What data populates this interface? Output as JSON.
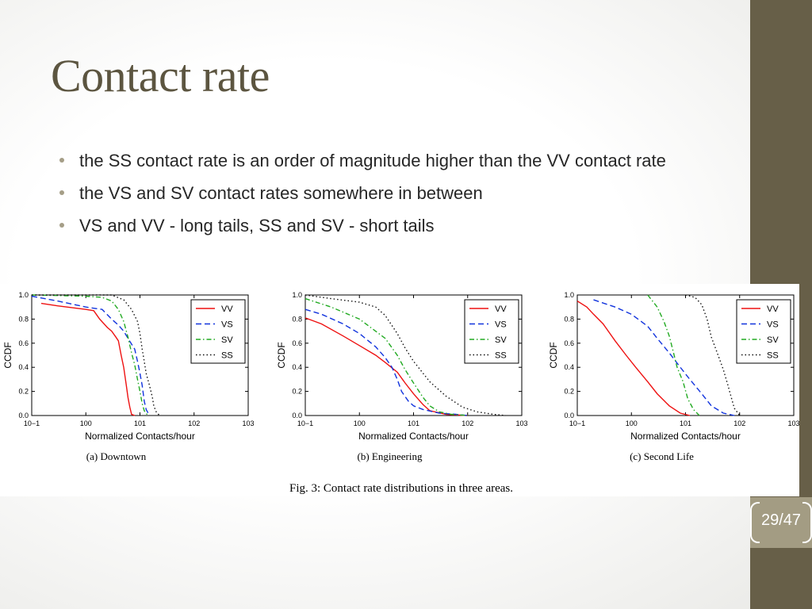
{
  "slide": {
    "title": "Contact rate",
    "bullets": [
      "the SS contact rate is an order of magnitude higher than the VV contact rate",
      "the VS and SV contact rates somewhere in between",
      "VS and VV - long tails, SS and SV - short tails"
    ],
    "page_counter": "29/47",
    "colors": {
      "sidebar": "#675f48",
      "title": "#5c5540",
      "bullet": "#a59e87",
      "counter_bg": "#a39c83"
    }
  },
  "figure": {
    "caption": "Fig. 3: Contact rate distributions in three areas."
  },
  "chart_data": [
    {
      "type": "line",
      "title": "(a) Downtown",
      "xlabel": "Normalized Contacts/hour",
      "ylabel": "CCDF",
      "x_scale": "log",
      "xlim": [
        0.1,
        1000
      ],
      "ylim": [
        0,
        1.0
      ],
      "x_ticks": [
        "10−1",
        "100",
        "101",
        "102",
        "103"
      ],
      "y_ticks": [
        "0.0",
        "0.2",
        "0.4",
        "0.6",
        "0.8",
        "1.0"
      ],
      "legend_position": "top-right",
      "series": [
        {
          "name": "VV",
          "color": "#ee1111",
          "dash": "solid",
          "points": [
            [
              0.15,
              0.93
            ],
            [
              0.3,
              0.91
            ],
            [
              1,
              0.88
            ],
            [
              1.4,
              0.87
            ],
            [
              1.8,
              0.8
            ],
            [
              2.5,
              0.73
            ],
            [
              3,
              0.7
            ],
            [
              3.6,
              0.65
            ],
            [
              4,
              0.62
            ],
            [
              4.5,
              0.5
            ],
            [
              5,
              0.4
            ],
            [
              5.6,
              0.25
            ],
            [
              6,
              0.15
            ],
            [
              6.5,
              0.07
            ],
            [
              7,
              0.01
            ],
            [
              8,
              0
            ]
          ]
        },
        {
          "name": "VS",
          "color": "#1133dd",
          "dash": "dashed",
          "points": [
            [
              0.1,
              0.99
            ],
            [
              0.3,
              0.95
            ],
            [
              1,
              0.9
            ],
            [
              2,
              0.88
            ],
            [
              3,
              0.8
            ],
            [
              4,
              0.75
            ],
            [
              5,
              0.7
            ],
            [
              6,
              0.64
            ],
            [
              8,
              0.55
            ],
            [
              9,
              0.45
            ],
            [
              10,
              0.35
            ],
            [
              11,
              0.25
            ],
            [
              12,
              0.12
            ],
            [
              13,
              0.05
            ],
            [
              15,
              0
            ]
          ]
        },
        {
          "name": "SV",
          "color": "#22aa22",
          "dash": "dashdot",
          "points": [
            [
              0.1,
              1
            ],
            [
              1,
              0.99
            ],
            [
              2,
              0.98
            ],
            [
              3,
              0.95
            ],
            [
              4,
              0.88
            ],
            [
              5,
              0.78
            ],
            [
              6,
              0.65
            ],
            [
              7,
              0.52
            ],
            [
              8,
              0.42
            ],
            [
              9,
              0.3
            ],
            [
              10,
              0.2
            ],
            [
              11,
              0.1
            ],
            [
              12,
              0.04
            ],
            [
              14,
              0
            ]
          ]
        },
        {
          "name": "SS",
          "color": "#111111",
          "dash": "dotted",
          "points": [
            [
              0.1,
              1
            ],
            [
              3,
              1
            ],
            [
              5,
              0.96
            ],
            [
              7,
              0.88
            ],
            [
              9,
              0.78
            ],
            [
              10,
              0.68
            ],
            [
              11,
              0.55
            ],
            [
              12,
              0.45
            ],
            [
              13,
              0.35
            ],
            [
              15,
              0.25
            ],
            [
              17,
              0.15
            ],
            [
              18,
              0.08
            ],
            [
              20,
              0.03
            ],
            [
              23,
              0
            ]
          ]
        }
      ]
    },
    {
      "type": "line",
      "title": "(b) Engineering",
      "xlabel": "Normalized Contacts/hour",
      "ylabel": "CCDF",
      "x_scale": "log",
      "xlim": [
        0.1,
        1000
      ],
      "ylim": [
        0,
        1.0
      ],
      "x_ticks": [
        "10−1",
        "100",
        "101",
        "102",
        "103"
      ],
      "y_ticks": [
        "0.0",
        "0.2",
        "0.4",
        "0.6",
        "0.8",
        "1.0"
      ],
      "legend_position": "top-right",
      "series": [
        {
          "name": "VV",
          "color": "#ee1111",
          "dash": "solid",
          "points": [
            [
              0.1,
              0.81
            ],
            [
              0.2,
              0.76
            ],
            [
              0.5,
              0.66
            ],
            [
              1,
              0.58
            ],
            [
              2,
              0.5
            ],
            [
              3,
              0.44
            ],
            [
              5,
              0.36
            ],
            [
              7,
              0.27
            ],
            [
              10,
              0.18
            ],
            [
              15,
              0.09
            ],
            [
              20,
              0.04
            ],
            [
              40,
              0.01
            ],
            [
              100,
              0
            ]
          ]
        },
        {
          "name": "VS",
          "color": "#1133dd",
          "dash": "dashed",
          "points": [
            [
              0.1,
              0.88
            ],
            [
              0.2,
              0.84
            ],
            [
              0.5,
              0.76
            ],
            [
              1,
              0.68
            ],
            [
              2,
              0.57
            ],
            [
              3,
              0.48
            ],
            [
              4,
              0.4
            ],
            [
              5,
              0.3
            ],
            [
              6,
              0.2
            ],
            [
              8,
              0.12
            ],
            [
              10,
              0.08
            ],
            [
              15,
              0.05
            ],
            [
              30,
              0.02
            ],
            [
              60,
              0.01
            ],
            [
              100,
              0
            ]
          ]
        },
        {
          "name": "SV",
          "color": "#22aa22",
          "dash": "dashdot",
          "points": [
            [
              0.1,
              0.97
            ],
            [
              0.3,
              0.9
            ],
            [
              1,
              0.8
            ],
            [
              3,
              0.64
            ],
            [
              5,
              0.5
            ],
            [
              7,
              0.38
            ],
            [
              10,
              0.27
            ],
            [
              15,
              0.15
            ],
            [
              20,
              0.08
            ],
            [
              30,
              0.03
            ],
            [
              50,
              0.01
            ],
            [
              100,
              0
            ]
          ]
        },
        {
          "name": "SS",
          "color": "#111111",
          "dash": "dotted",
          "points": [
            [
              0.1,
              1
            ],
            [
              0.3,
              0.97
            ],
            [
              1,
              0.94
            ],
            [
              2,
              0.9
            ],
            [
              3,
              0.83
            ],
            [
              5,
              0.68
            ],
            [
              7,
              0.56
            ],
            [
              10,
              0.45
            ],
            [
              20,
              0.28
            ],
            [
              40,
              0.16
            ],
            [
              80,
              0.07
            ],
            [
              150,
              0.03
            ],
            [
              300,
              0.01
            ],
            [
              500,
              0
            ]
          ]
        }
      ]
    },
    {
      "type": "line",
      "title": "(c) Second Life",
      "xlabel": "Normalized Contacts/hour",
      "ylabel": "CCDF",
      "x_scale": "log",
      "xlim": [
        0.1,
        1000
      ],
      "ylim": [
        0,
        1.0
      ],
      "x_ticks": [
        "10−1",
        "100",
        "101",
        "102",
        "103"
      ],
      "y_ticks": [
        "0.0",
        "0.2",
        "0.4",
        "0.6",
        "0.8",
        "1.0"
      ],
      "legend_position": "top-right",
      "series": [
        {
          "name": "VV",
          "color": "#ee1111",
          "dash": "solid",
          "points": [
            [
              0.1,
              0.95
            ],
            [
              0.15,
              0.9
            ],
            [
              0.2,
              0.84
            ],
            [
              0.3,
              0.76
            ],
            [
              0.5,
              0.62
            ],
            [
              0.8,
              0.5
            ],
            [
              1.2,
              0.4
            ],
            [
              2,
              0.28
            ],
            [
              3,
              0.18
            ],
            [
              5,
              0.08
            ],
            [
              8,
              0.02
            ],
            [
              12,
              0
            ]
          ]
        },
        {
          "name": "VS",
          "color": "#1133dd",
          "dash": "dashed",
          "points": [
            [
              0.2,
              0.96
            ],
            [
              0.5,
              0.9
            ],
            [
              1,
              0.84
            ],
            [
              2,
              0.74
            ],
            [
              3,
              0.64
            ],
            [
              5,
              0.52
            ],
            [
              8,
              0.4
            ],
            [
              12,
              0.3
            ],
            [
              20,
              0.18
            ],
            [
              30,
              0.08
            ],
            [
              50,
              0.02
            ],
            [
              80,
              0
            ]
          ]
        },
        {
          "name": "SV",
          "color": "#22aa22",
          "dash": "dashdot",
          "points": [
            [
              2,
              1
            ],
            [
              3,
              0.9
            ],
            [
              4,
              0.78
            ],
            [
              5,
              0.66
            ],
            [
              6,
              0.52
            ],
            [
              7,
              0.4
            ],
            [
              9,
              0.28
            ],
            [
              11,
              0.14
            ],
            [
              14,
              0.05
            ],
            [
              18,
              0
            ]
          ]
        },
        {
          "name": "SS",
          "color": "#111111",
          "dash": "dotted",
          "points": [
            [
              10,
              1
            ],
            [
              15,
              0.98
            ],
            [
              20,
              0.92
            ],
            [
              25,
              0.8
            ],
            [
              30,
              0.65
            ],
            [
              40,
              0.5
            ],
            [
              50,
              0.38
            ],
            [
              60,
              0.26
            ],
            [
              70,
              0.15
            ],
            [
              80,
              0.06
            ],
            [
              100,
              0
            ]
          ]
        }
      ]
    }
  ]
}
